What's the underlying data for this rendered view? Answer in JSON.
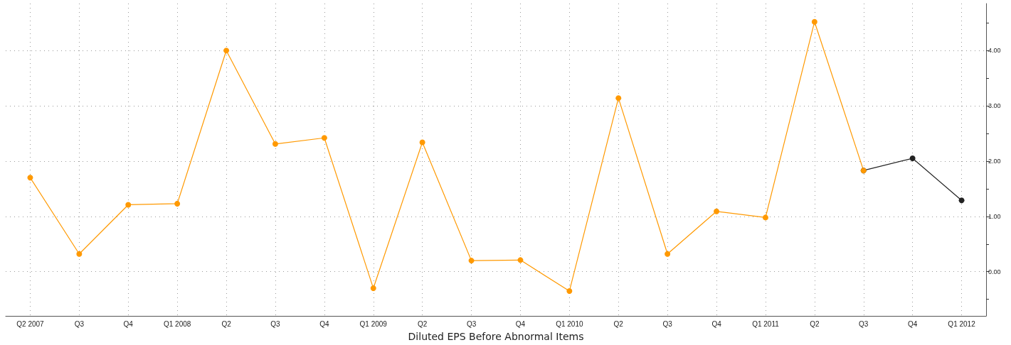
{
  "chart_data": {
    "type": "line",
    "xlabel": "Diluted EPS Before Abnormal Items",
    "categories": [
      "Q2 2007",
      "Q3",
      "Q4",
      "Q1 2008",
      "Q2",
      "Q3",
      "Q4",
      "Q1 2009",
      "Q2",
      "Q3",
      "Q4",
      "Q1 2010",
      "Q2",
      "Q3",
      "Q4",
      "Q1 2011",
      "Q2",
      "Q3",
      "Q4",
      "Q1 2012"
    ],
    "series": [
      {
        "color": "#222222",
        "values": [
          null,
          null,
          null,
          null,
          null,
          null,
          null,
          null,
          null,
          null,
          null,
          null,
          null,
          null,
          null,
          null,
          null,
          1.83,
          2.05,
          1.29
        ]
      },
      {
        "color": "#ff9900",
        "values": [
          1.7,
          0.32,
          1.21,
          1.23,
          4.0,
          2.31,
          2.42,
          -0.3,
          2.34,
          0.2,
          0.21,
          -0.35,
          3.14,
          0.32,
          1.09,
          0.98,
          4.52,
          1.83,
          null,
          null
        ]
      }
    ],
    "ylim": [
      -0.8,
      4.85
    ],
    "yticks": [
      {
        "value": -0.5,
        "label": null
      },
      {
        "value": 0,
        "label": "0.00"
      },
      {
        "value": 0.5,
        "label": null
      },
      {
        "value": 1,
        "label": "1.00"
      },
      {
        "value": 1.5,
        "label": null
      },
      {
        "value": 2,
        "label": "2.00"
      },
      {
        "value": 2.5,
        "label": null
      },
      {
        "value": 3,
        "label": "3.00"
      },
      {
        "value": 3.5,
        "label": null
      },
      {
        "value": 4,
        "label": "4.00"
      },
      {
        "value": 4.5,
        "label": null
      }
    ],
    "grid": true,
    "marker": "circle",
    "line_style": "solid"
  }
}
